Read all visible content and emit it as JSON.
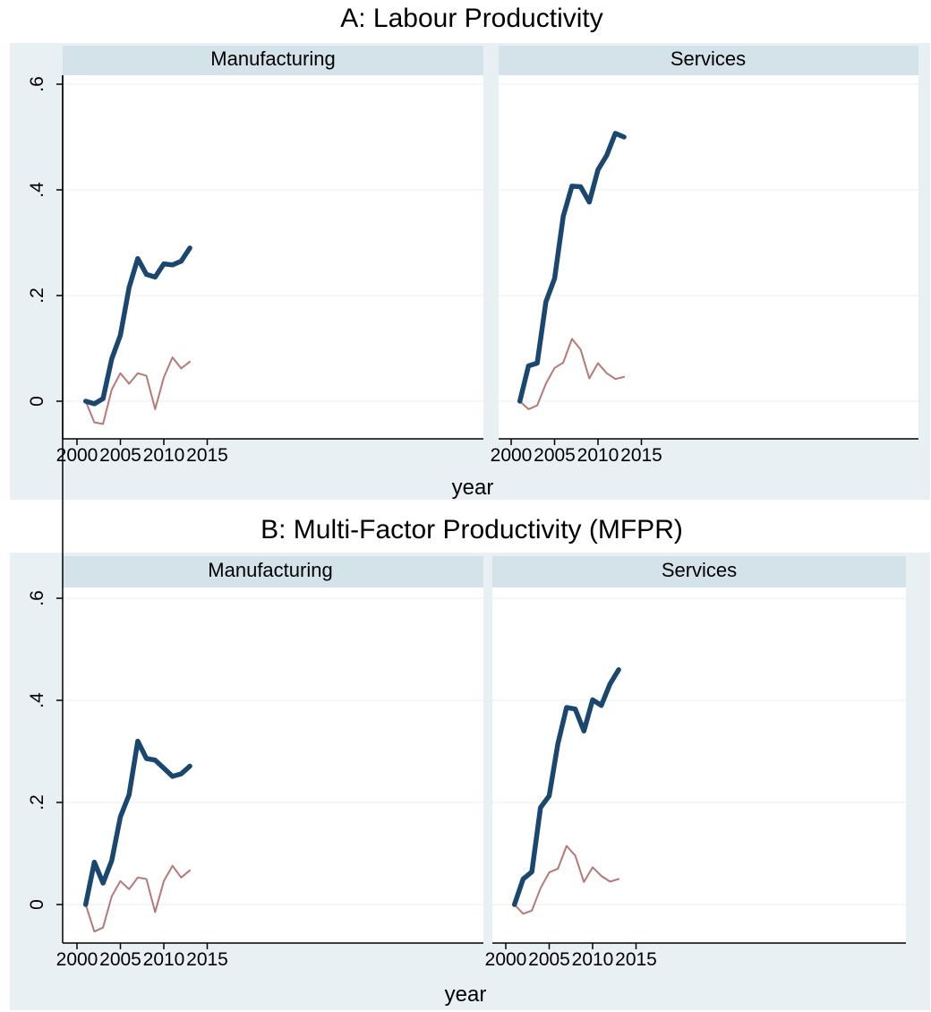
{
  "panels_title": [
    "A: Labour Productivity",
    "B: Multi-Factor Productivity (MFPR)"
  ],
  "chart_data": [
    {
      "type": "line",
      "title": "A: Labour Productivity",
      "xlabel": "year",
      "ylabel": "",
      "x_ticks": [
        "2000",
        "2005",
        "2010",
        "2015"
      ],
      "y_ticks": [
        "0",
        ".2",
        ".4",
        ".6"
      ],
      "xlim": [
        2000,
        2015
      ],
      "ylim": [
        -0.07,
        0.6
      ],
      "grid": true,
      "facets": [
        {
          "name": "Manufacturing",
          "x": [
            2001,
            2002,
            2003,
            2004,
            2005,
            2006,
            2007,
            2008,
            2009,
            2010,
            2011,
            2012,
            2013
          ],
          "series": [
            {
              "values": [
                0.0,
                -0.005,
                0.005,
                0.08,
                0.125,
                0.215,
                0.27,
                0.24,
                0.235,
                0.26,
                0.258,
                0.265,
                0.29
              ],
              "color": "#1a476f",
              "weight": "thick"
            },
            {
              "values": [
                0.0,
                -0.04,
                -0.043,
                0.022,
                0.053,
                0.033,
                0.053,
                0.048,
                -0.015,
                0.045,
                0.083,
                0.062,
                0.075
              ],
              "color": "#b87878",
              "weight": "thin"
            }
          ]
        },
        {
          "name": "Services",
          "x": [
            2001,
            2002,
            2003,
            2004,
            2005,
            2006,
            2007,
            2008,
            2009,
            2010,
            2011,
            2012,
            2013
          ],
          "series": [
            {
              "values": [
                0.0,
                0.067,
                0.072,
                0.188,
                0.232,
                0.35,
                0.407,
                0.406,
                0.377,
                0.438,
                0.465,
                0.507,
                0.5
              ],
              "color": "#1a476f",
              "weight": "thick"
            },
            {
              "values": [
                0.0,
                -0.015,
                -0.008,
                0.033,
                0.063,
                0.073,
                0.118,
                0.098,
                0.043,
                0.072,
                0.053,
                0.042,
                0.046
              ],
              "color": "#b87878",
              "weight": "thin"
            }
          ]
        }
      ]
    },
    {
      "type": "line",
      "title": "B: Multi-Factor Productivity (MFPR)",
      "xlabel": "year",
      "ylabel": "",
      "x_ticks": [
        "2000",
        "2005",
        "2010",
        "2015"
      ],
      "y_ticks": [
        "0",
        ".2",
        ".4",
        ".6"
      ],
      "xlim": [
        2000,
        2015
      ],
      "ylim": [
        -0.07,
        0.6
      ],
      "grid": true,
      "facets": [
        {
          "name": "Manufacturing",
          "x": [
            2001,
            2002,
            2003,
            2004,
            2005,
            2006,
            2007,
            2008,
            2009,
            2010,
            2011,
            2012,
            2013
          ],
          "series": [
            {
              "values": [
                0.0,
                0.083,
                0.042,
                0.086,
                0.172,
                0.215,
                0.32,
                0.286,
                0.283,
                0.267,
                0.251,
                0.256,
                0.271
              ],
              "color": "#1a476f",
              "weight": "thick"
            },
            {
              "values": [
                0.0,
                -0.053,
                -0.045,
                0.016,
                0.046,
                0.03,
                0.053,
                0.05,
                -0.015,
                0.046,
                0.076,
                0.053,
                0.067
              ],
              "color": "#b87878",
              "weight": "thin"
            }
          ]
        },
        {
          "name": "Services",
          "x": [
            2001,
            2002,
            2003,
            2004,
            2005,
            2006,
            2007,
            2008,
            2009,
            2010,
            2011,
            2012,
            2013
          ],
          "series": [
            {
              "values": [
                0.0,
                0.05,
                0.064,
                0.19,
                0.213,
                0.315,
                0.386,
                0.383,
                0.34,
                0.401,
                0.39,
                0.432,
                0.46
              ],
              "color": "#1a476f",
              "weight": "thick"
            },
            {
              "values": [
                0.0,
                -0.018,
                -0.012,
                0.032,
                0.063,
                0.07,
                0.115,
                0.096,
                0.044,
                0.073,
                0.056,
                0.045,
                0.05
              ],
              "color": "#b87878",
              "weight": "thin"
            }
          ]
        }
      ]
    }
  ]
}
